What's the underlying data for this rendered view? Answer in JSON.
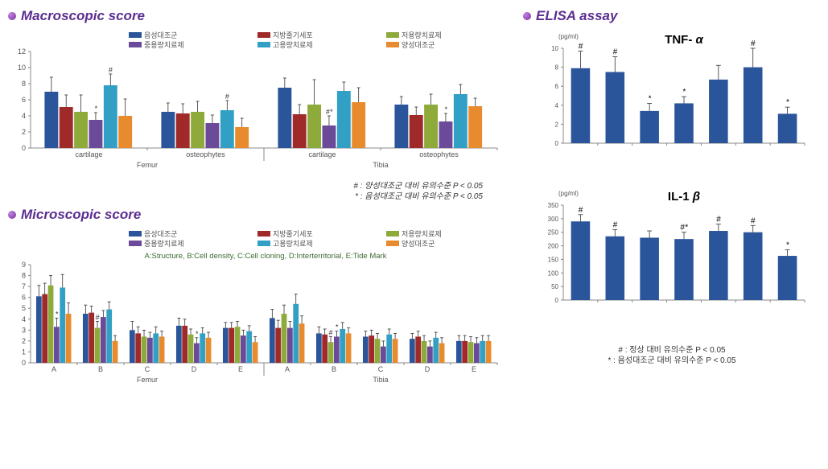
{
  "series": [
    {
      "label": "음성대조군",
      "color": "#2b559a"
    },
    {
      "label": "지방줄기세포",
      "color": "#a02929"
    },
    {
      "label": "저용량치료제",
      "color": "#8daa3b"
    },
    {
      "label": "중용량치료제",
      "color": "#6a4a99"
    },
    {
      "label": "고용량치료제",
      "color": "#31a0c4"
    },
    {
      "label": "양성대조군",
      "color": "#e88b2e"
    }
  ],
  "macro": {
    "title": "Macroscopic  score",
    "ylim": [
      0,
      12
    ],
    "ytick": 2,
    "regions": [
      "Femur",
      "Tibia"
    ],
    "subcats": [
      "cartilage",
      "osteophytes"
    ],
    "data": [
      {
        "vals": [
          7.0,
          5.1,
          4.5,
          3.5,
          7.8,
          4.0
        ],
        "err": [
          1.8,
          1.5,
          2.1,
          0.9,
          1.4,
          2.1
        ],
        "sig": [
          "",
          "",
          "",
          "*",
          "#",
          ""
        ]
      },
      {
        "vals": [
          4.5,
          4.3,
          4.5,
          3.1,
          4.7,
          2.6
        ],
        "err": [
          1.1,
          1.2,
          1.3,
          1.0,
          1.2,
          1.1
        ],
        "sig": [
          "",
          "",
          "",
          "",
          "#",
          ""
        ]
      },
      {
        "vals": [
          7.5,
          4.2,
          5.4,
          2.8,
          7.1,
          5.7
        ],
        "err": [
          1.2,
          1.2,
          3.1,
          1.2,
          1.1,
          1.8
        ],
        "sig": [
          "",
          "",
          "",
          "#*",
          "",
          ""
        ]
      },
      {
        "vals": [
          5.4,
          4.1,
          5.4,
          3.3,
          6.7,
          5.2
        ],
        "err": [
          1.0,
          1.0,
          1.3,
          1.0,
          1.2,
          1.0
        ],
        "sig": [
          "",
          "",
          "",
          "*",
          "",
          ""
        ]
      }
    ]
  },
  "micro": {
    "title": "Microscopic  score",
    "ylim": [
      0,
      9
    ],
    "ytick": 1,
    "regions": [
      "Femur",
      "Tibia"
    ],
    "subcats": [
      "A",
      "B",
      "C",
      "D",
      "E"
    ],
    "sublegend": "A:Structure, B:Cell density, C:Cell cloning, D:Interterritorial, E:Tide Mark",
    "data": [
      {
        "vals": [
          6.1,
          6.3,
          7.1,
          3.3,
          6.9,
          4.5
        ],
        "err": [
          1.0,
          1.0,
          0.9,
          0.8,
          1.2,
          1.0
        ],
        "sig": [
          "",
          "",
          "",
          "*",
          "",
          ""
        ]
      },
      {
        "vals": [
          4.5,
          4.6,
          3.2,
          4.2,
          4.9,
          2.0
        ],
        "err": [
          0.8,
          0.6,
          0.6,
          0.6,
          0.7,
          0.5
        ],
        "sig": [
          "",
          "",
          "#",
          "",
          "",
          ""
        ]
      },
      {
        "vals": [
          3.0,
          2.7,
          2.4,
          2.3,
          2.7,
          2.4
        ],
        "err": [
          0.8,
          0.6,
          0.6,
          0.5,
          0.6,
          0.5
        ],
        "sig": [
          "",
          "",
          "",
          "",
          "",
          ""
        ]
      },
      {
        "vals": [
          3.4,
          3.4,
          2.6,
          1.8,
          2.7,
          2.3
        ],
        "err": [
          0.7,
          0.6,
          0.5,
          0.5,
          0.5,
          0.5
        ],
        "sig": [
          "",
          "",
          "",
          "*",
          "",
          ""
        ]
      },
      {
        "vals": [
          3.2,
          3.2,
          3.3,
          2.5,
          2.9,
          1.9
        ],
        "err": [
          0.5,
          0.5,
          0.5,
          0.5,
          0.5,
          0.5
        ],
        "sig": [
          "",
          "",
          "",
          "",
          "",
          ""
        ]
      },
      {
        "vals": [
          4.1,
          3.2,
          4.5,
          3.2,
          5.4,
          3.6
        ],
        "err": [
          0.8,
          0.7,
          0.8,
          0.6,
          0.9,
          0.7
        ],
        "sig": [
          "",
          "",
          "",
          "",
          "",
          ""
        ]
      },
      {
        "vals": [
          2.7,
          2.6,
          1.9,
          2.4,
          3.1,
          2.7
        ],
        "err": [
          0.6,
          0.5,
          0.5,
          0.5,
          0.6,
          0.5
        ],
        "sig": [
          "",
          "",
          "#",
          "*",
          "",
          ""
        ]
      },
      {
        "vals": [
          2.4,
          2.5,
          2.2,
          1.5,
          2.6,
          2.2
        ],
        "err": [
          0.5,
          0.5,
          0.5,
          0.5,
          0.5,
          0.5
        ],
        "sig": [
          "",
          "",
          "",
          "",
          "",
          ""
        ]
      },
      {
        "vals": [
          2.2,
          2.4,
          2.0,
          1.5,
          2.3,
          1.8
        ],
        "err": [
          0.5,
          0.5,
          0.5,
          0.5,
          0.5,
          0.5
        ],
        "sig": [
          "",
          "",
          "",
          "",
          "",
          ""
        ]
      },
      {
        "vals": [
          2.0,
          2.0,
          1.9,
          1.8,
          2.0,
          2.0
        ],
        "err": [
          0.5,
          0.5,
          0.5,
          0.5,
          0.5,
          0.5
        ],
        "sig": [
          "",
          "",
          "",
          "",
          "",
          ""
        ]
      }
    ]
  },
  "elisa": {
    "title": "ELISA  assay",
    "unit": "(pg/ml)",
    "charts": [
      {
        "name": "TNF-α",
        "nameParts": [
          "TNF- ",
          "α"
        ],
        "ylim": [
          0,
          10
        ],
        "ytick": 2,
        "color": "#2b559a",
        "vals": [
          7.9,
          7.5,
          3.4,
          4.2,
          6.7,
          8.0,
          3.1
        ],
        "err": [
          1.8,
          1.6,
          0.8,
          0.7,
          1.5,
          2.0,
          0.7
        ],
        "sig": [
          "#",
          "#",
          "*",
          "*",
          "",
          "#",
          "*"
        ]
      },
      {
        "name": "IL-1β",
        "nameParts": [
          "IL-1 ",
          "β"
        ],
        "ylim": [
          0,
          350
        ],
        "ytick": 50,
        "color": "#2b559a",
        "vals": [
          290,
          235,
          230,
          225,
          255,
          250,
          163
        ],
        "err": [
          25,
          25,
          25,
          25,
          25,
          25,
          22
        ],
        "sig": [
          "#",
          "#",
          "",
          "#*",
          "#",
          "#",
          "*"
        ]
      }
    ]
  },
  "sigLeft": {
    "hash": "#  :  양성대조군 대비 유의수준  P  <  0.05",
    "star": "*  :  음성대조군 대비 유의수준  P  <  0.05"
  },
  "sigRight": {
    "hash": "#  :  정상 대비 유의수준 P  <  0.05",
    "star": "*  :  음성대조군 대비 유의수준 P  <  0.05"
  }
}
